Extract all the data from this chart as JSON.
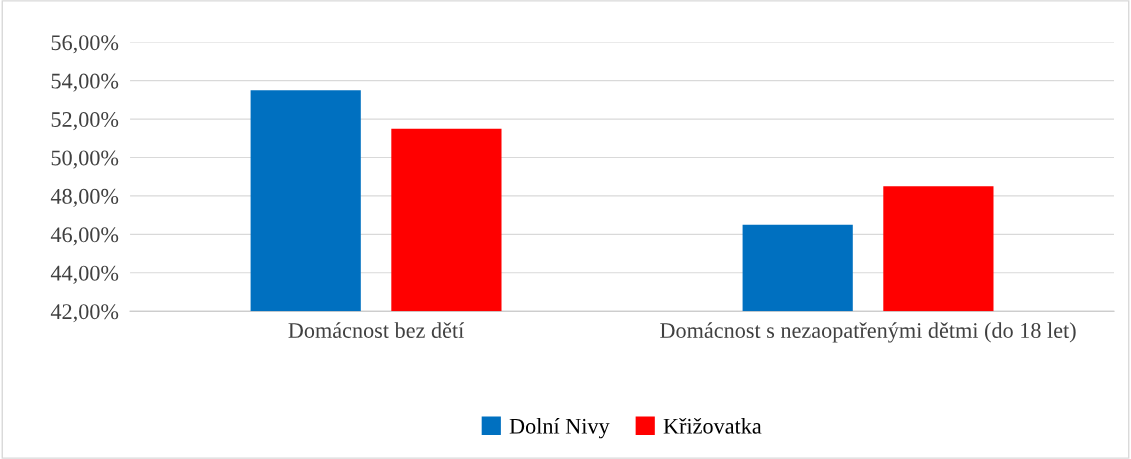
{
  "chart_data": {
    "type": "bar",
    "categories": [
      "Domácnost bez dětí",
      "Domácnost s nezaopatřenými dětmi (do 18 let)"
    ],
    "series": [
      {
        "name": "Dolní Nivy",
        "color": "#0070c0",
        "values": [
          53.5,
          46.5
        ]
      },
      {
        "name": "Křižovatka",
        "color": "#ff0000",
        "values": [
          51.5,
          48.5
        ]
      }
    ],
    "ylim": [
      42,
      56
    ],
    "yticks": [
      {
        "value": 42,
        "label": "42,00%"
      },
      {
        "value": 44,
        "label": "44,00%"
      },
      {
        "value": 46,
        "label": "46,00%"
      },
      {
        "value": 48,
        "label": "48,00%"
      },
      {
        "value": 50,
        "label": "50,00%"
      },
      {
        "value": 52,
        "label": "52,00%"
      },
      {
        "value": 54,
        "label": "54,00%"
      },
      {
        "value": 56,
        "label": "56,00%"
      }
    ],
    "grid": "y",
    "legend": "bottom"
  }
}
